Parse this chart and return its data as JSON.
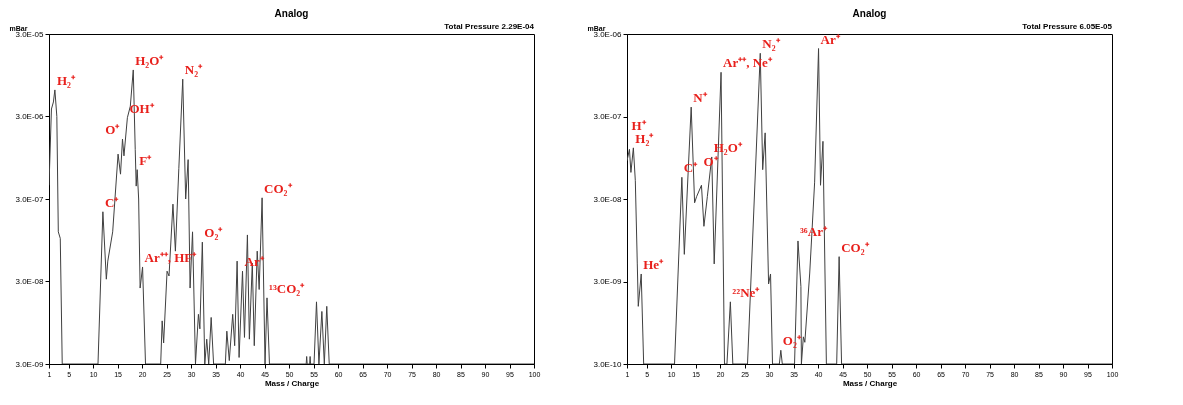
{
  "chart_data": [
    {
      "type": "line",
      "title": "Analog",
      "xlabel": "Mass / Charge",
      "ylabel": "mBar",
      "log": true,
      "xlim": [
        1,
        100
      ],
      "xticks": [
        1,
        5,
        10,
        15,
        20,
        25,
        30,
        35,
        40,
        45,
        50,
        55,
        60,
        65,
        70,
        75,
        80,
        85,
        90,
        95,
        100
      ],
      "ylim": [
        3e-09,
        3e-05
      ],
      "yticks": [
        {
          "value": 3e-09,
          "label": "3.0E-09"
        },
        {
          "value": 3e-08,
          "label": "3.0E-08"
        },
        {
          "value": 3e-07,
          "label": "3.0E-07"
        },
        {
          "value": 3e-06,
          "label": "3.0E-06"
        },
        {
          "value": 3e-05,
          "label": "3.0E-05"
        }
      ],
      "series": [
        {
          "color": "#404040",
          "x": [
            1,
            1.5,
            1.9,
            2.2,
            2.6,
            2.9,
            3.3,
            3.7,
            11,
            12,
            12.7,
            13,
            14,
            15.1,
            15.6,
            16,
            16.3,
            17,
            17.6,
            18.2,
            18.6,
            18.8,
            19,
            19.3,
            19.6,
            20.1,
            20.7,
            23.8,
            24.1,
            24.4,
            25.1,
            25.5,
            26.3,
            26.8,
            27.5,
            28.3,
            28.9,
            29.4,
            29.8,
            30.3,
            30.9,
            31.5,
            31.8,
            32.3,
            32.8,
            33.2,
            33.6,
            34.1,
            34.6,
            37,
            37.3,
            37.8,
            38.5,
            38.9,
            39.4,
            39.8,
            40.5,
            40.9,
            41.5,
            41.9,
            42.5,
            42.9,
            43.5,
            43.9,
            44.5,
            45.1,
            45.5,
            46,
            53.5,
            53.6,
            53.7,
            54.2,
            54.3,
            54.4,
            55.1,
            55.6,
            56.1,
            56.7,
            57.2,
            57.7,
            58.2,
            100
          ],
          "values": [
            4.4e-07,
            3.7e-06,
            4.5e-06,
            6.3e-06,
            3e-06,
            1.2e-07,
            1e-07,
            3e-09,
            3e-09,
            2.1e-07,
            3.2e-08,
            5.3e-08,
            1.2e-07,
            1.05e-06,
            6e-07,
            1.6e-06,
            1e-06,
            2.9e-06,
            4e-06,
            1.1e-05,
            1.2e-06,
            4.3e-07,
            6.8e-07,
            3e-07,
            2.5e-08,
            4.5e-08,
            3e-09,
            3e-09,
            1e-08,
            5.4e-09,
            4e-08,
            3.5e-08,
            2.6e-07,
            7e-08,
            7e-07,
            8.5e-06,
            3e-07,
            9e-07,
            2.5e-08,
            1.2e-07,
            3e-09,
            1.2e-08,
            8e-09,
            9e-08,
            3e-09,
            6e-09,
            3e-09,
            1.1e-08,
            3e-09,
            3e-09,
            7.5e-09,
            3.3e-09,
            1.2e-08,
            5e-09,
            5.3e-08,
            3.6e-09,
            4e-08,
            6.3e-09,
            1.1e-07,
            6e-09,
            5e-08,
            5e-09,
            7e-08,
            2.4e-08,
            3.1e-07,
            3e-09,
            1.9e-08,
            3e-09,
            3e-09,
            3.7e-09,
            3e-09,
            3e-09,
            3.7e-09,
            3e-09,
            3e-09,
            1.7e-08,
            3e-09,
            1.3e-08,
            3e-09,
            1.5e-08,
            3e-09,
            3e-09
          ]
        }
      ],
      "annotations": [
        "Total Pressure  2.29E-04",
        {
          "text": "H₂⁺",
          "x": 2.2,
          "y": 6.3e-06
        },
        {
          "text": "H₂O⁺",
          "x": 18.2,
          "y": 1.1e-05
        },
        {
          "text": "N₂⁺",
          "x": 28.3,
          "y": 8.5e-06
        },
        {
          "text": "OH⁺",
          "x": 17,
          "y": 2.9e-06
        },
        {
          "text": "O⁺",
          "x": 16,
          "y": 1.6e-06
        },
        {
          "text": "F⁺",
          "x": 19,
          "y": 6.8e-07
        },
        {
          "text": "C⁺",
          "x": 12,
          "y": 2.1e-07
        },
        {
          "text": "Ar⁺⁺, HF⁺",
          "x": 20.1,
          "y": 4.5e-08
        },
        {
          "text": "CO₂⁺",
          "x": 44.5,
          "y": 3.1e-07
        },
        {
          "text": "O₂⁺",
          "x": 32.3,
          "y": 9e-08
        },
        {
          "text": "Ar⁺",
          "x": 40.5,
          "y": 4e-08
        },
        {
          "text": "¹³CO₂⁺",
          "x": 45.5,
          "y": 1.9e-08
        }
      ]
    },
    {
      "type": "line",
      "title": "Analog",
      "xlabel": "Mass / Charge",
      "ylabel": "mBar",
      "log": true,
      "xlim": [
        1,
        100
      ],
      "xticks": [
        1,
        5,
        10,
        15,
        20,
        25,
        30,
        35,
        40,
        45,
        50,
        55,
        60,
        65,
        70,
        75,
        80,
        85,
        90,
        95,
        100
      ],
      "ylim": [
        3e-10,
        3e-06
      ],
      "yticks": [
        {
          "value": 3e-10,
          "label": "3.0E-10"
        },
        {
          "value": 3e-09,
          "label": "3.0E-09"
        },
        {
          "value": 3e-08,
          "label": "3.0E-08"
        },
        {
          "value": 3e-07,
          "label": "3.0E-07"
        },
        {
          "value": 3e-06,
          "label": "3.0E-06"
        }
      ],
      "series": [
        {
          "color": "#404040",
          "x": [
            1,
            1.5,
            1.8,
            2.3,
            2.7,
            3.1,
            3.3,
            3.9,
            4.4,
            10.7,
            12.2,
            12.7,
            14.1,
            14.8,
            15.2,
            16.2,
            16.7,
            17.4,
            18.3,
            18.8,
            20.2,
            20.9,
            21.4,
            22.1,
            22.6,
            25.6,
            28.2,
            28.7,
            29.2,
            29.9,
            30.3,
            30.7,
            32.1,
            32.4,
            32.7,
            35.2,
            35.9,
            36.5,
            36.6,
            37,
            37.3,
            38.3,
            39.3,
            40.1,
            40.5,
            41,
            41.7,
            43.8,
            44.3,
            44.8,
            100
          ],
          "values": [
            8.7e-08,
            1.2e-07,
            6.3e-08,
            1.25e-07,
            5e-08,
            4.9e-09,
            1.5e-09,
            3.7e-09,
            3e-10,
            3e-10,
            5.5e-08,
            6.4e-09,
            3.9e-07,
            2.7e-08,
            3.2e-08,
            4.4e-08,
            1.4e-08,
            3.2e-08,
            9.7e-08,
            4.9e-09,
            1.03e-06,
            3e-10,
            3e-10,
            1.7e-09,
            3e-10,
            3e-10,
            1.75e-06,
            6.8e-08,
            1.9e-07,
            2.8e-09,
            3.7e-09,
            3e-10,
            3e-10,
            4.4e-10,
            3e-10,
            3e-10,
            9.3e-09,
            2.6e-09,
            3e-10,
            6.4e-10,
            5.5e-10,
            3.8e-09,
            4.8e-08,
            2e-06,
            4.4e-08,
            1.5e-07,
            3e-10,
            3e-10,
            6e-09,
            3e-10,
            3e-10
          ]
        }
      ],
      "annotations": [
        "Total Pressure  6.05E-05",
        {
          "text": "H⁺",
          "x": 1.5,
          "y": 1.2e-07
        },
        {
          "text": "H₂⁺",
          "x": 2.3,
          "y": 1.25e-07
        },
        {
          "text": "N⁺",
          "x": 14.1,
          "y": 3.9e-07
        },
        {
          "text": "Ar⁺⁺, Ne⁺",
          "x": 20.2,
          "y": 1.03e-06
        },
        {
          "text": "N₂⁺",
          "x": 28.2,
          "y": 1.75e-06
        },
        {
          "text": "Ar⁺",
          "x": 40.1,
          "y": 2e-06
        },
        {
          "text": "H₂O⁺",
          "x": 18.3,
          "y": 9.7e-08
        },
        {
          "text": "C⁺",
          "x": 12.2,
          "y": 5.5e-08
        },
        {
          "text": "O⁺",
          "x": 16.2,
          "y": 4.4e-08
        },
        {
          "text": "He⁺",
          "x": 3.9,
          "y": 3.7e-09
        },
        {
          "text": "²²Ne⁺",
          "x": 22.1,
          "y": 1.7e-09
        },
        {
          "text": "³⁶Ar⁺",
          "x": 35.9,
          "y": 9.3e-09
        },
        {
          "text": "CO₂⁺",
          "x": 44.3,
          "y": 6e-09
        },
        {
          "text": "O₂⁺",
          "x": 32.4,
          "y": 4.4e-10
        }
      ]
    }
  ]
}
